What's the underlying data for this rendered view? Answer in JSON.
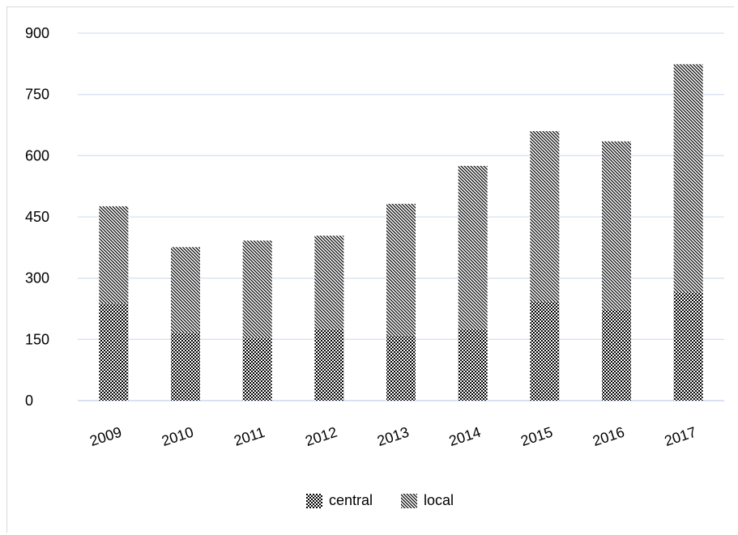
{
  "chart_data": {
    "type": "bar",
    "stacked": true,
    "categories": [
      "2009",
      "2010",
      "2011",
      "2012",
      "2013",
      "2014",
      "2015",
      "2016",
      "2017"
    ],
    "series": [
      {
        "name": "central",
        "values": [
          237,
          166,
          154,
          175,
          159,
          175,
          242,
          222,
          265
        ]
      },
      {
        "name": "local",
        "values": [
          239,
          210,
          238,
          229,
          323,
          400,
          418,
          413,
          559
        ]
      }
    ],
    "yticks": [
      "0",
      "150",
      "300",
      "450",
      "600",
      "750",
      "900"
    ],
    "ylim": [
      0,
      900
    ],
    "grid": true,
    "legend_position": "bottom",
    "colors": {
      "grid": "#d6e2f2",
      "axis": "#c0d1ea",
      "ink": "#000000"
    }
  }
}
